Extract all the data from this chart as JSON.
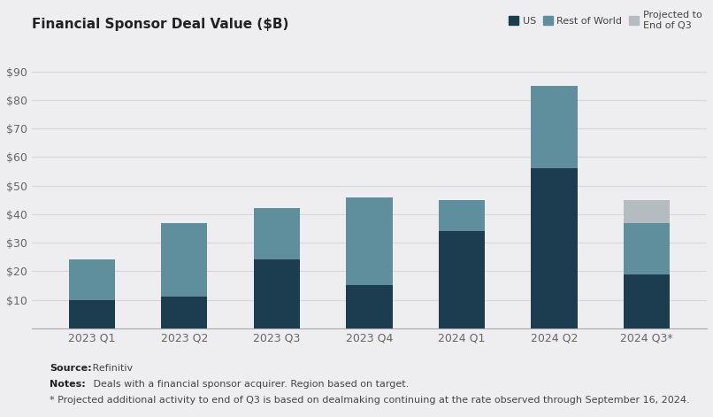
{
  "title": "Financial Sponsor Deal Value ($B)",
  "categories": [
    "2023 Q1",
    "2023 Q2",
    "2023 Q3",
    "2023 Q4",
    "2024 Q1",
    "2024 Q2",
    "2024 Q3*"
  ],
  "us_values": [
    10,
    11,
    24,
    15,
    34,
    56,
    19
  ],
  "row_values": [
    14,
    26,
    18,
    31,
    11,
    29,
    18
  ],
  "projected_values": [
    0,
    0,
    0,
    0,
    0,
    0,
    8
  ],
  "color_us": "#1c3d50",
  "color_row": "#5f8f9c",
  "color_proj": "#b5bcbf",
  "background_color": "#eeeef0",
  "ylim": [
    0,
    100
  ],
  "yticks": [
    0,
    10,
    20,
    30,
    40,
    50,
    60,
    70,
    80,
    90
  ],
  "ytick_labels": [
    "",
    "$10",
    "$20",
    "$30",
    "$40",
    "$50",
    "$60",
    "$70",
    "$80",
    "$90"
  ],
  "legend_labels": [
    "US",
    "Rest of World",
    "Projected to\nEnd of Q3"
  ],
  "source_bold": "Source:",
  "source_rest": " Refinitiv",
  "notes_bold": "Notes:",
  "notes_rest": " Deals with a financial sponsor acquirer. Region based on target.",
  "footnote_text": "* Projected additional activity to end of Q3 is based on dealmaking continuing at the rate observed through September 16, 2024.",
  "bar_width": 0.5,
  "grid_color": "#d8d8da",
  "tick_color": "#666666",
  "title_color": "#222222"
}
